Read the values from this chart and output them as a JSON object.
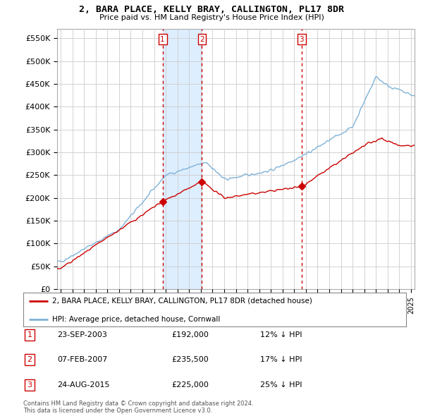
{
  "title": "2, BARA PLACE, KELLY BRAY, CALLINGTON, PL17 8DR",
  "subtitle": "Price paid vs. HM Land Registry's House Price Index (HPI)",
  "ylabel_ticks": [
    "£0",
    "£50K",
    "£100K",
    "£150K",
    "£200K",
    "£250K",
    "£300K",
    "£350K",
    "£400K",
    "£450K",
    "£500K",
    "£550K"
  ],
  "ytick_values": [
    0,
    50000,
    100000,
    150000,
    200000,
    250000,
    300000,
    350000,
    400000,
    450000,
    500000,
    550000
  ],
  "ylim": [
    0,
    570000
  ],
  "xlim_start": 1994.7,
  "xlim_end": 2025.3,
  "sale_dates": [
    2003.73,
    2007.1,
    2015.64
  ],
  "sale_prices": [
    192000,
    235500,
    225000
  ],
  "sale_labels": [
    "1",
    "2",
    "3"
  ],
  "vline_color": "#cc0000",
  "vline_style": "--",
  "sale_marker_color": "#cc0000",
  "shading_color": "#ddeeff",
  "legend_line1_label": "2, BARA PLACE, KELLY BRAY, CALLINGTON, PL17 8DR (detached house)",
  "legend_line2_label": "HPI: Average price, detached house, Cornwall",
  "table_rows": [
    {
      "num": "1",
      "date": "23-SEP-2003",
      "price": "£192,000",
      "hpi": "12% ↓ HPI"
    },
    {
      "num": "2",
      "date": "07-FEB-2007",
      "price": "£235,500",
      "hpi": "17% ↓ HPI"
    },
    {
      "num": "3",
      "date": "24-AUG-2015",
      "price": "£225,000",
      "hpi": "25% ↓ HPI"
    }
  ],
  "footer": "Contains HM Land Registry data © Crown copyright and database right 2024.\nThis data is licensed under the Open Government Licence v3.0.",
  "bg_color": "#ffffff",
  "grid_color": "#cccccc",
  "hpi_line_color": "#7fb2d8",
  "price_line_color": "#cc0000"
}
